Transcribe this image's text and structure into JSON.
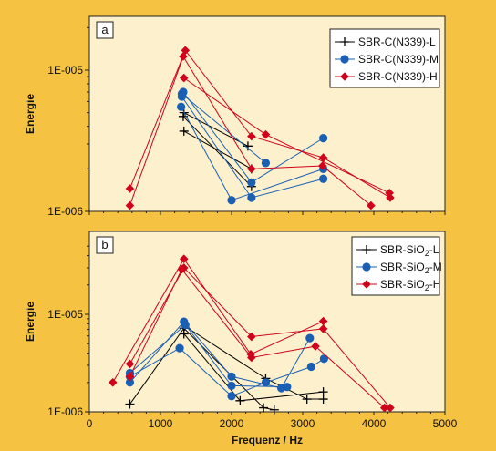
{
  "chart_data": [
    {
      "type": "line",
      "panel_label": "a",
      "ylabel": "Energie",
      "yscale": "log",
      "xlim": [
        0,
        5000
      ],
      "ylim": [
        1e-06,
        2e-05
      ],
      "yticks": [
        {
          "value": 1e-06,
          "label": "1E-006"
        },
        {
          "value": 1e-05,
          "label": "1E-005"
        }
      ],
      "legend_position": "top-right",
      "series": [
        {
          "name": "SBR-C(N339)-L",
          "color": "#000000",
          "marker": "plus",
          "lines": [
            [
              [
                1320,
                4.7e-06
              ],
              [
                2280,
                1.5e-06
              ]
            ],
            [
              [
                1330,
                5e-06
              ],
              [
                2230,
                2.9e-06
              ]
            ],
            [
              [
                1330,
                3.7e-06
              ],
              [
                2280,
                2e-06
              ]
            ]
          ]
        },
        {
          "name": "SBR-C(N339)-M",
          "color": "#1a5fb4",
          "marker": "circle",
          "lines": [
            [
              [
                1290,
                5.5e-06
              ],
              [
                2000,
                1.2e-06
              ],
              [
                3290,
                2e-06
              ]
            ],
            [
              [
                1300,
                6.5e-06
              ],
              [
                2280,
                1.25e-06
              ],
              [
                3290,
                1.7e-06
              ]
            ],
            [
              [
                1320,
                7e-06
              ],
              [
                2280,
                1.6e-06
              ],
              [
                3290,
                3.3e-06
              ]
            ],
            [
              [
                1300,
                6.8e-06
              ],
              [
                2480,
                2.2e-06
              ]
            ]
          ]
        },
        {
          "name": "SBR-C(N339)-H",
          "color": "#d0021b",
          "marker": "diamond",
          "lines": [
            [
              [
                570,
                1.1e-06
              ],
              [
                1320,
                1.25e-05
              ],
              [
                2280,
                2e-06
              ],
              [
                3280,
                2.1e-06
              ],
              [
                3960,
                1.1e-06
              ]
            ],
            [
              [
                570,
                1.45e-06
              ],
              [
                1350,
                1.38e-05
              ],
              [
                2280,
                3.4e-06
              ],
              [
                3290,
                2.4e-06
              ],
              [
                4230,
                1.25e-06
              ]
            ],
            [
              [
                1330,
                8.8e-06
              ],
              [
                2480,
                3.5e-06
              ],
              [
                4220,
                1.35e-06
              ]
            ]
          ]
        }
      ]
    },
    {
      "type": "line",
      "panel_label": "b",
      "ylabel": "Energie",
      "xlabel": "Frequenz / Hz",
      "yscale": "log",
      "xlim": [
        0,
        5000
      ],
      "ylim": [
        1e-06,
        5e-05
      ],
      "xticks": [
        0,
        1000,
        2000,
        3000,
        4000,
        5000
      ],
      "yticks": [
        {
          "value": 1e-06,
          "label": "1E-006"
        },
        {
          "value": 1e-05,
          "label": "1E-005"
        }
      ],
      "legend_position": "top-right",
      "series": [
        {
          "name": "SBR-SiO",
          "name_sub": "2",
          "name_suffix": "-L",
          "color": "#000000",
          "marker": "plus",
          "lines": [
            [
              [
                570,
                1.2e-06
              ],
              [
                1330,
                7.2e-06
              ],
              [
                2450,
                1.1e-06
              ],
              [
                2600,
                1.05e-06
              ]
            ],
            [
              [
                1330,
                6.3e-06
              ],
              [
                2120,
                1.3e-06
              ],
              [
                3290,
                1.6e-06
              ]
            ],
            [
              [
                1340,
                7.6e-06
              ],
              [
                2480,
                2.2e-06
              ],
              [
                3060,
                1.35e-06
              ],
              [
                3290,
                1.35e-06
              ]
            ]
          ]
        },
        {
          "name": "SBR-SiO",
          "name_sub": "2",
          "name_suffix": "-M",
          "color": "#1a5fb4",
          "marker": "circle",
          "lines": [
            [
              [
                570,
                2e-06
              ],
              [
                1330,
                8.4e-06
              ],
              [
                2000,
                2.3e-06
              ],
              [
                2700,
                1.75e-06
              ],
              [
                3100,
                5.7e-06
              ]
            ],
            [
              [
                570,
                2.3e-06
              ],
              [
                1270,
                4.5e-06
              ],
              [
                2000,
                1.45e-06
              ],
              [
                2480,
                2e-06
              ],
              [
                3120,
                2.9e-06
              ],
              [
                3300,
                3.5e-06
              ]
            ],
            [
              [
                570,
                2.5e-06
              ],
              [
                1350,
                7.8e-06
              ],
              [
                2000,
                1.85e-06
              ],
              [
                2780,
                1.8e-06
              ]
            ]
          ]
        },
        {
          "name": "SBR-SiO",
          "name_sub": "2",
          "name_suffix": "-H",
          "color": "#d0021b",
          "marker": "diamond",
          "lines": [
            [
              [
                330,
                2e-06
              ],
              [
                1330,
                3.7e-05
              ],
              [
                2270,
                3.9e-06
              ],
              [
                3290,
                8.5e-06
              ]
            ],
            [
              [
                570,
                2.3e-06
              ],
              [
                1300,
                2.9e-05
              ],
              [
                2280,
                3.6e-06
              ],
              [
                3180,
                4.7e-06
              ],
              [
                4150,
                1.1e-06
              ]
            ],
            [
              [
                570,
                3.1e-06
              ],
              [
                1330,
                3e-05
              ],
              [
                2280,
                5.9e-06
              ],
              [
                3290,
                7.1e-06
              ],
              [
                4230,
                1.1e-06
              ]
            ]
          ]
        }
      ]
    }
  ]
}
